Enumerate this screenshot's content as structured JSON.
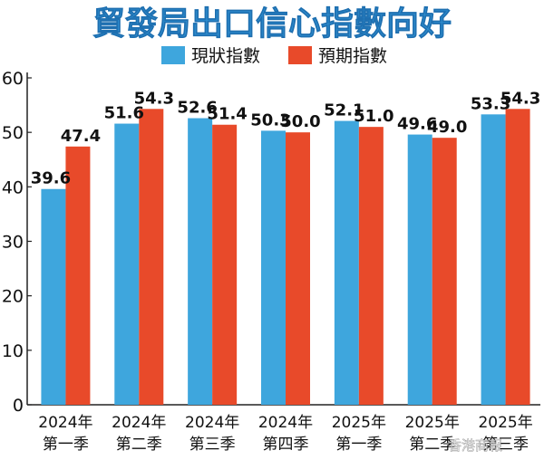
{
  "chart_data": {
    "type": "bar",
    "title": "貿發局出口信心指數向好",
    "categories": [
      [
        "2024年",
        "第一季"
      ],
      [
        "2024年",
        "第二季"
      ],
      [
        "2024年",
        "第三季"
      ],
      [
        "2024年",
        "第四季"
      ],
      [
        "2025年",
        "第一季"
      ],
      [
        "2025年",
        "第二季"
      ],
      [
        "2025年",
        "第三季"
      ]
    ],
    "series": [
      {
        "name": "現狀指數",
        "color": "#3ea6dd",
        "values": [
          39.6,
          51.6,
          52.6,
          50.3,
          52.1,
          49.6,
          53.3
        ]
      },
      {
        "name": "預期指數",
        "color": "#e84a2a",
        "values": [
          47.4,
          54.3,
          51.4,
          50.0,
          51.0,
          49.0,
          54.3
        ]
      }
    ],
    "y_ticks": [
      0,
      10,
      20,
      30,
      40,
      50,
      60
    ],
    "ylim": [
      0,
      60
    ],
    "grid": false,
    "legend_position": "top-center",
    "title_color": "#2f8fd0"
  },
  "watermark": "香港商報"
}
